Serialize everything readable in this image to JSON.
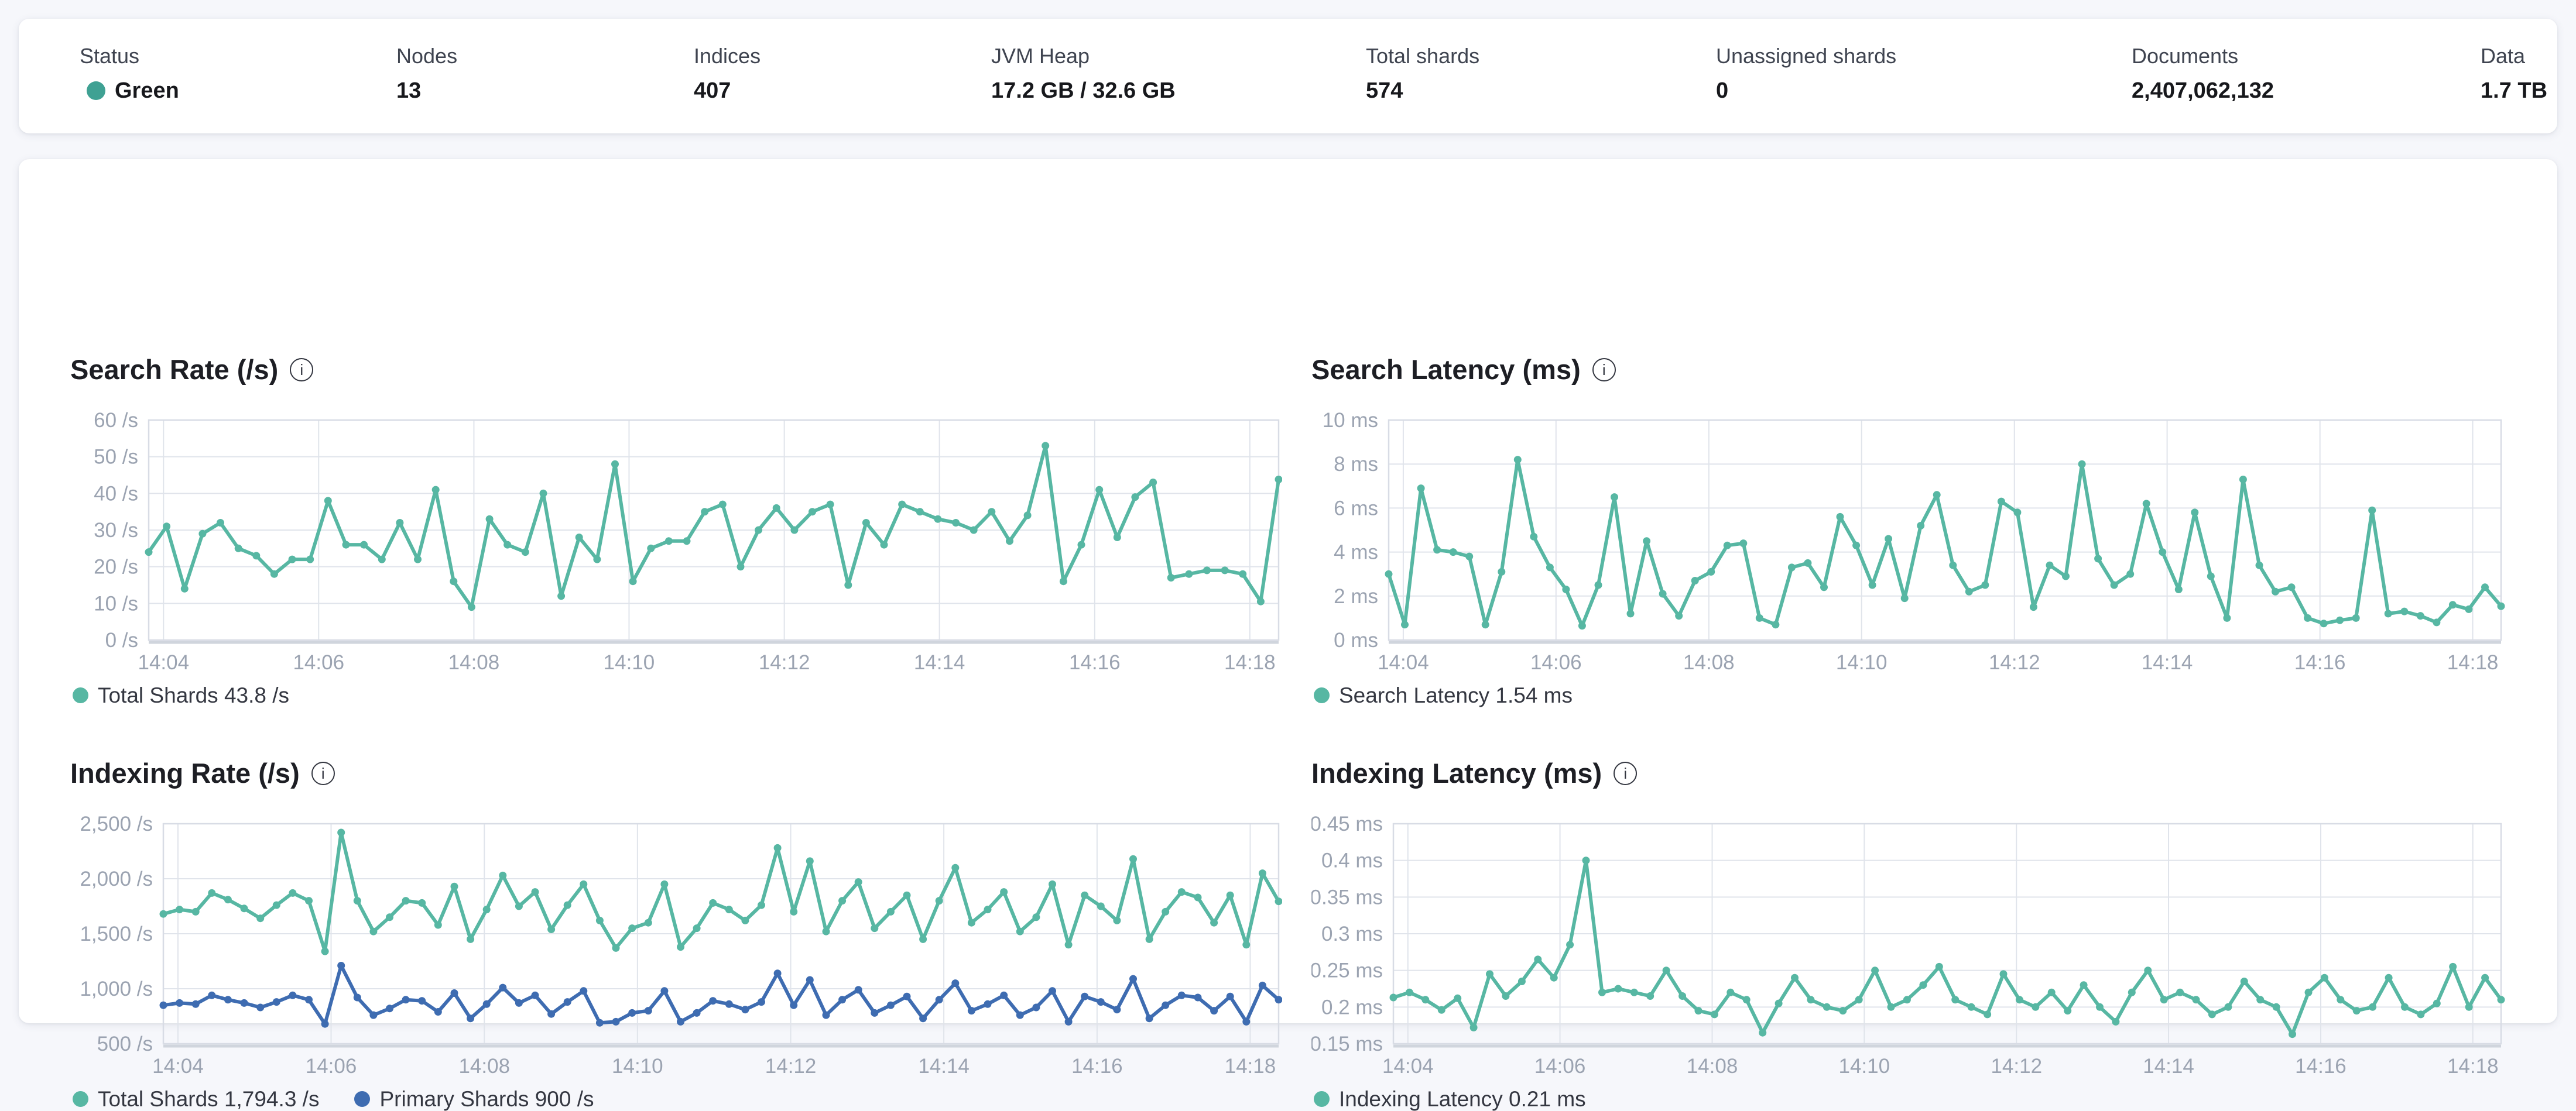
{
  "header": {
    "metrics": [
      {
        "label": "Status",
        "value": "Green",
        "type": "status",
        "status_color": "#3fa193"
      },
      {
        "label": "Nodes",
        "value": "13"
      },
      {
        "label": "Indices",
        "value": "407"
      },
      {
        "label": "JVM Heap",
        "value": "17.2 GB / 32.6 GB"
      },
      {
        "label": "Total shards",
        "value": "574"
      },
      {
        "label": "Unassigned shards",
        "value": "0"
      },
      {
        "label": "Documents",
        "value": "2,407,062,132"
      },
      {
        "label": "Data",
        "value": "1.7 TB"
      }
    ]
  },
  "colors": {
    "teal": "#57b7a3",
    "blue": "#3e6cb1",
    "grid": "#e0e4eb",
    "plot_border": "#d8dce5",
    "axis_text": "#9ba3b1"
  },
  "chart_data": [
    {
      "type": "line",
      "title": "Search Rate (/s)",
      "ylabel": "/s",
      "y_domain": [
        0,
        60
      ],
      "y_ticks": [
        {
          "value": 60,
          "label": "60 /s"
        },
        {
          "value": 50,
          "label": "50 /s"
        },
        {
          "value": 40,
          "label": "40 /s"
        },
        {
          "value": 30,
          "label": "30 /s"
        },
        {
          "value": 20,
          "label": "20 /s"
        },
        {
          "value": 10,
          "label": "10 /s"
        },
        {
          "value": 0,
          "label": "0 /s"
        }
      ],
      "x_labels": [
        "14:04",
        "14:06",
        "14:08",
        "14:10",
        "14:12",
        "14:14",
        "14:16",
        "14:18"
      ],
      "grid": true,
      "legend_position": "bottom",
      "series": [
        {
          "name": "Total Shards",
          "legend": "Total Shards 43.8 /s",
          "color": "#57b7a3",
          "values": [
            24,
            31,
            14,
            29,
            32,
            25,
            23,
            18,
            22,
            22,
            38,
            26,
            26,
            22,
            32,
            22,
            41,
            16,
            9,
            33,
            26,
            24,
            40,
            12,
            28,
            22,
            48,
            16,
            25,
            27,
            27,
            35,
            37,
            20,
            30,
            36,
            30,
            35,
            37,
            15,
            32,
            26,
            37,
            35,
            33,
            32,
            30,
            35,
            27,
            34,
            53,
            16,
            26,
            41,
            28,
            39,
            43,
            17,
            18,
            19,
            19,
            18,
            10.5,
            43.8
          ]
        }
      ]
    },
    {
      "type": "line",
      "title": "Search Latency (ms)",
      "ylabel": "ms",
      "y_domain": [
        0,
        10
      ],
      "y_ticks": [
        {
          "value": 10,
          "label": "10 ms"
        },
        {
          "value": 8,
          "label": "8 ms"
        },
        {
          "value": 6,
          "label": "6 ms"
        },
        {
          "value": 4,
          "label": "4 ms"
        },
        {
          "value": 2,
          "label": "2 ms"
        },
        {
          "value": 0,
          "label": "0 ms"
        }
      ],
      "x_labels": [
        "14:04",
        "14:06",
        "14:08",
        "14:10",
        "14:12",
        "14:14",
        "14:16",
        "14:18"
      ],
      "grid": true,
      "legend_position": "bottom",
      "series": [
        {
          "name": "Search Latency",
          "legend": "Search Latency 1.54 ms",
          "color": "#57b7a3",
          "values": [
            3.0,
            0.7,
            6.9,
            4.1,
            4.0,
            3.8,
            0.7,
            3.1,
            8.2,
            4.7,
            3.3,
            2.3,
            0.65,
            2.5,
            6.5,
            1.2,
            4.5,
            2.1,
            1.1,
            2.7,
            3.1,
            4.3,
            4.4,
            1.0,
            0.7,
            3.3,
            3.5,
            2.4,
            5.6,
            4.3,
            2.5,
            4.6,
            1.9,
            5.2,
            6.6,
            3.4,
            2.2,
            2.5,
            6.3,
            5.8,
            1.5,
            3.4,
            2.9,
            8.0,
            3.7,
            2.5,
            3.0,
            6.2,
            4.0,
            2.3,
            5.8,
            2.9,
            1.0,
            7.3,
            3.4,
            2.2,
            2.4,
            1.0,
            0.75,
            0.9,
            1.0,
            5.9,
            1.2,
            1.3,
            1.1,
            0.8,
            1.6,
            1.4,
            2.4,
            1.54
          ]
        }
      ]
    },
    {
      "type": "line",
      "title": "Indexing Rate (/s)",
      "ylabel": "/s",
      "y_domain": [
        500,
        2500
      ],
      "y_ticks": [
        {
          "value": 2500,
          "label": "2,500 /s"
        },
        {
          "value": 2000,
          "label": "2,000 /s"
        },
        {
          "value": 1500,
          "label": "1,500 /s"
        },
        {
          "value": 1000,
          "label": "1,000 /s"
        },
        {
          "value": 500,
          "label": "500 /s"
        }
      ],
      "x_labels": [
        "14:04",
        "14:06",
        "14:08",
        "14:10",
        "14:12",
        "14:14",
        "14:16",
        "14:18"
      ],
      "grid": true,
      "legend_position": "bottom",
      "series": [
        {
          "name": "Total Shards",
          "legend": "Total Shards 1,794.3 /s",
          "color": "#57b7a3",
          "values": [
            1680,
            1720,
            1700,
            1870,
            1810,
            1730,
            1640,
            1760,
            1870,
            1800,
            1340,
            2420,
            1800,
            1520,
            1650,
            1800,
            1780,
            1580,
            1930,
            1450,
            1720,
            2030,
            1750,
            1880,
            1540,
            1760,
            1950,
            1620,
            1370,
            1550,
            1600,
            1950,
            1380,
            1550,
            1780,
            1720,
            1620,
            1760,
            2280,
            1700,
            2160,
            1520,
            1800,
            1970,
            1550,
            1700,
            1850,
            1450,
            1800,
            2100,
            1600,
            1720,
            1880,
            1520,
            1650,
            1950,
            1400,
            1850,
            1750,
            1620,
            2180,
            1450,
            1700,
            1880,
            1830,
            1600,
            1850,
            1400,
            2050,
            1794.3
          ]
        },
        {
          "name": "Primary Shards",
          "legend": "Primary Shards 900 /s",
          "color": "#3e6cb1",
          "values": [
            850,
            870,
            860,
            940,
            900,
            870,
            830,
            880,
            940,
            900,
            680,
            1210,
            920,
            760,
            820,
            900,
            890,
            790,
            960,
            730,
            860,
            1010,
            870,
            940,
            770,
            880,
            980,
            690,
            700,
            780,
            800,
            980,
            700,
            780,
            890,
            860,
            810,
            880,
            1140,
            850,
            1080,
            760,
            900,
            990,
            780,
            850,
            930,
            730,
            900,
            1050,
            800,
            860,
            940,
            760,
            830,
            980,
            700,
            930,
            880,
            810,
            1090,
            730,
            850,
            940,
            920,
            800,
            930,
            700,
            1030,
            900
          ]
        }
      ]
    },
    {
      "type": "line",
      "title": "Indexing Latency (ms)",
      "ylabel": "ms",
      "y_domain": [
        0.15,
        0.45
      ],
      "y_ticks": [
        {
          "value": 0.45,
          "label": "0.45 ms"
        },
        {
          "value": 0.4,
          "label": "0.4 ms"
        },
        {
          "value": 0.35,
          "label": "0.35 ms"
        },
        {
          "value": 0.3,
          "label": "0.3 ms"
        },
        {
          "value": 0.25,
          "label": "0.25 ms"
        },
        {
          "value": 0.2,
          "label": "0.2 ms"
        },
        {
          "value": 0.15,
          "label": "0.15 ms"
        }
      ],
      "x_labels": [
        "14:04",
        "14:06",
        "14:08",
        "14:10",
        "14:12",
        "14:14",
        "14:16",
        "14:18"
      ],
      "grid": true,
      "legend_position": "bottom",
      "series": [
        {
          "name": "Indexing Latency",
          "legend": "Indexing Latency 0.21 ms",
          "color": "#57b7a3",
          "values": [
            0.213,
            0.22,
            0.21,
            0.196,
            0.212,
            0.172,
            0.245,
            0.215,
            0.235,
            0.265,
            0.24,
            0.285,
            0.4,
            0.22,
            0.225,
            0.22,
            0.215,
            0.25,
            0.215,
            0.195,
            0.19,
            0.22,
            0.21,
            0.165,
            0.205,
            0.24,
            0.21,
            0.2,
            0.195,
            0.21,
            0.25,
            0.2,
            0.21,
            0.23,
            0.255,
            0.21,
            0.2,
            0.19,
            0.245,
            0.21,
            0.2,
            0.22,
            0.195,
            0.23,
            0.2,
            0.18,
            0.22,
            0.25,
            0.21,
            0.22,
            0.21,
            0.19,
            0.2,
            0.235,
            0.21,
            0.2,
            0.163,
            0.22,
            0.24,
            0.21,
            0.195,
            0.2,
            0.24,
            0.2,
            0.19,
            0.205,
            0.255,
            0.2,
            0.24,
            0.21
          ]
        }
      ]
    }
  ]
}
